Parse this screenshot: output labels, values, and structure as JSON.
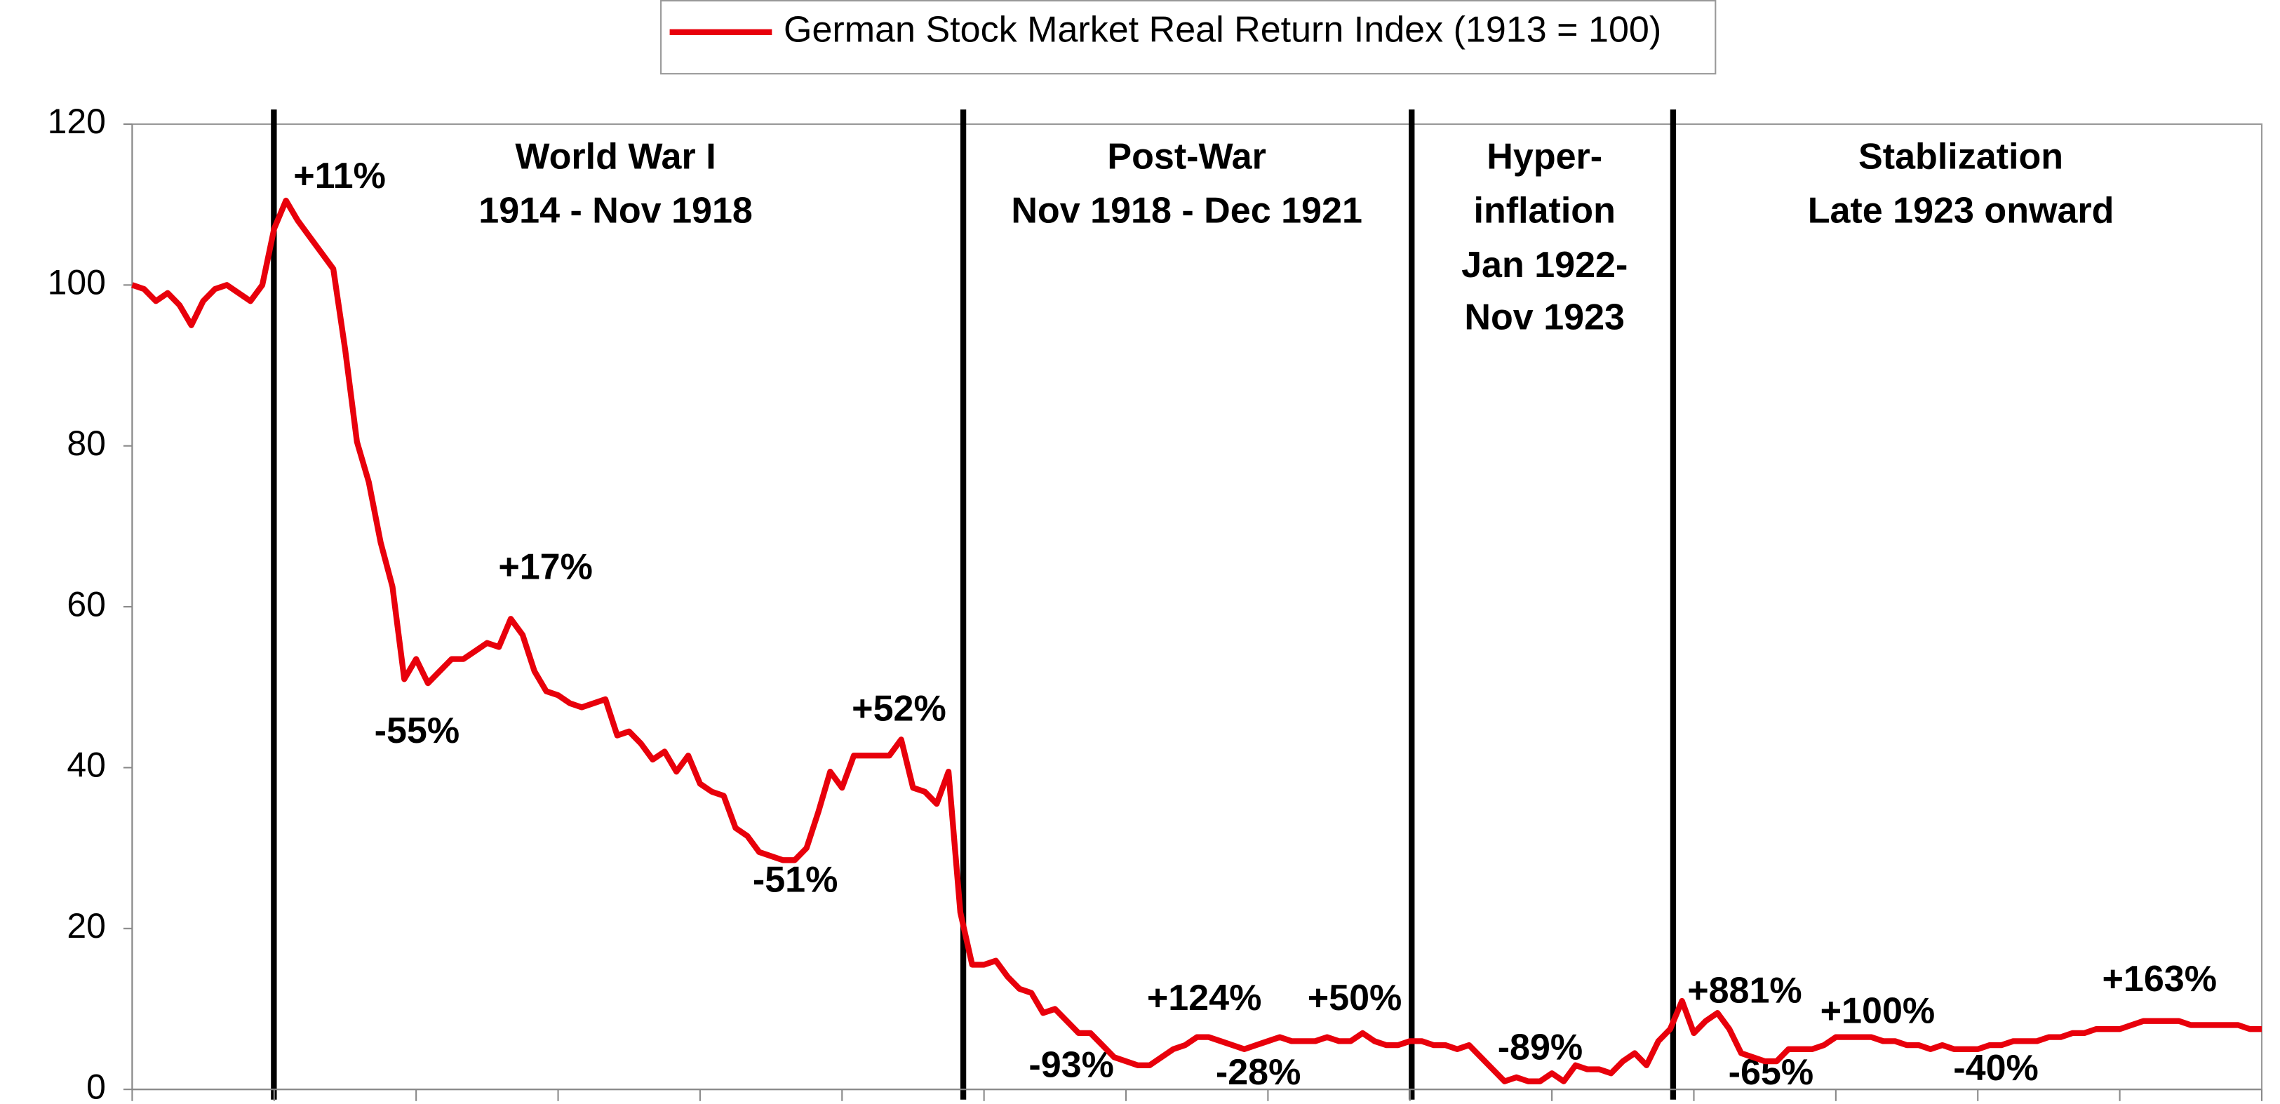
{
  "chart_data": {
    "type": "line",
    "series": [
      {
        "name": "German Stock Market Real Return Index (1913 = 100)",
        "color": "#e8000b",
        "values": [
          100,
          99.5,
          98,
          99,
          97.5,
          95,
          98,
          99.5,
          100,
          99,
          98,
          100,
          107,
          110.5,
          108,
          106,
          104,
          102,
          92,
          80.5,
          75.5,
          68,
          62.5,
          51,
          53.5,
          50.5,
          52,
          53.5,
          53.5,
          54.5,
          55.5,
          55,
          58.5,
          56.5,
          52,
          49.5,
          49,
          48,
          47.5,
          48,
          48.5,
          44,
          44.5,
          43,
          41,
          42,
          39.5,
          41.5,
          38,
          37,
          36.5,
          32.5,
          31.5,
          29.5,
          29,
          28.5,
          28.5,
          30,
          34.5,
          39.5,
          37.5,
          41.5,
          41.5,
          41.5,
          41.5,
          43.5,
          37.5,
          37,
          35.5,
          39.5,
          22,
          15.5,
          15.5,
          16,
          14,
          12.5,
          12,
          9.5,
          10,
          8.5,
          7,
          7,
          5.5,
          4,
          3.5,
          3,
          3,
          4,
          5,
          5.5,
          6.5,
          6.5,
          6,
          5.5,
          5,
          5.5,
          6,
          6.5,
          6,
          6,
          6,
          6.5,
          6,
          6,
          7,
          6,
          5.5,
          5.5,
          6,
          6,
          5.5,
          5.5,
          5,
          5.5,
          4,
          2.5,
          1,
          1.5,
          1,
          1,
          2,
          1,
          3,
          2.5,
          2.5,
          2,
          3.5,
          4.5,
          3,
          6,
          7.5,
          11,
          7,
          8.5,
          9.5,
          7.5,
          4.5,
          4,
          3.5,
          3.5,
          5,
          5,
          5,
          5.5,
          6.5,
          6.5,
          6.5,
          6.5,
          6,
          6,
          5.5,
          5.5,
          5,
          5.5,
          5,
          5,
          5,
          5.5,
          5.5,
          6,
          6,
          6,
          6.5,
          6.5,
          7,
          7,
          7.5,
          7.5,
          7.5,
          8,
          8.5,
          8.5,
          8.5,
          8.5,
          8,
          8,
          8,
          8,
          8,
          7.5,
          7.5
        ]
      }
    ],
    "ylim": [
      0,
      120
    ],
    "yticks": [
      0,
      20,
      40,
      60,
      80,
      100,
      120
    ],
    "legend": "top",
    "periods": [
      [
        "World War I",
        "1914 - Nov 1918"
      ],
      [
        "Post-War",
        "Nov 1918 - Dec 1921"
      ],
      [
        "Hyper-",
        "inflation",
        "Jan 1922-",
        "Nov 1923"
      ],
      [
        "Stablization",
        "Late 1923 onward"
      ]
    ],
    "annotations": [
      "+11%",
      "+17%",
      "-55%",
      "+52%",
      "-51%",
      "-93%",
      "+124%",
      "-28%",
      "+50%",
      "-89%",
      "+881%",
      "-65%",
      "+100%",
      "-40%",
      "+163%"
    ]
  }
}
